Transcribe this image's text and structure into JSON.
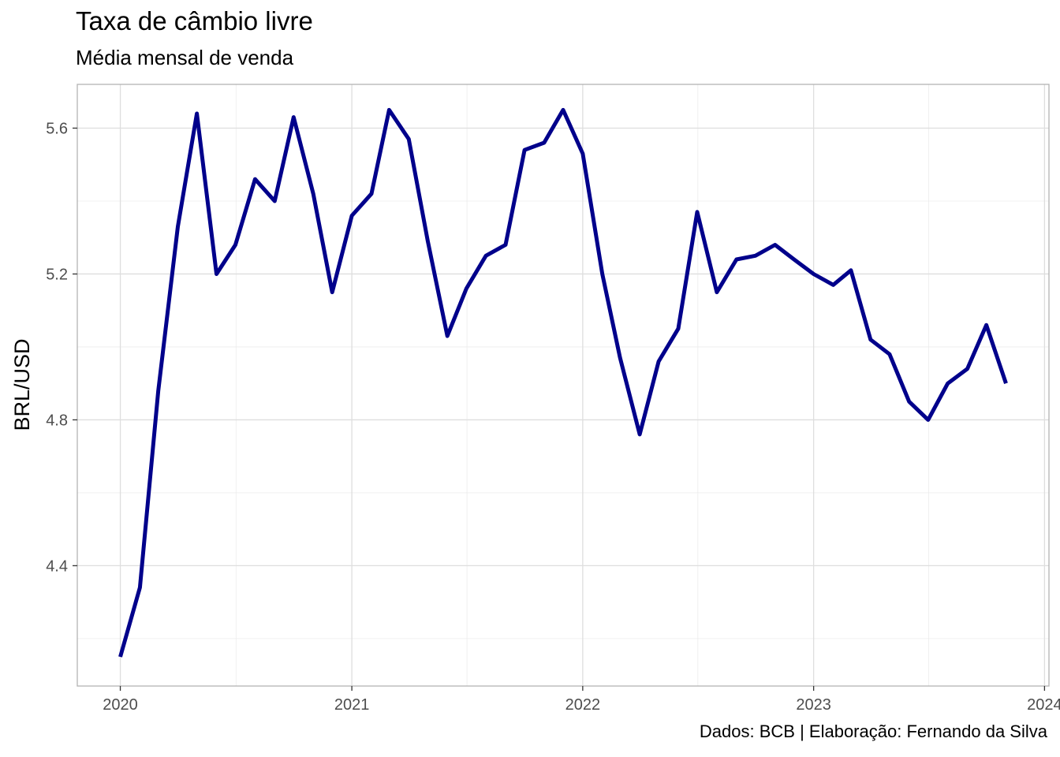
{
  "chart_data": {
    "type": "line",
    "title": "Taxa de câmbio livre",
    "subtitle": "Média mensal de venda",
    "caption": "Dados: BCB | Elaboração: Fernando da Silva",
    "xlabel": "",
    "ylabel": "BRL/USD",
    "grid": true,
    "xlim": [
      "2019-10-25",
      "2024-01-08"
    ],
    "ylim": [
      4.07,
      5.72
    ],
    "x_ticks": [
      "2020",
      "2021",
      "2022",
      "2023",
      "2024"
    ],
    "y_ticks": [
      "4.4",
      "4.8",
      "5.2",
      "5.6"
    ],
    "line_color": "#00008b",
    "series": [
      {
        "x": [
          "2020-01",
          "2020-02",
          "2020-03",
          "2020-04",
          "2020-05",
          "2020-06",
          "2020-07",
          "2020-08",
          "2020-09",
          "2020-10",
          "2020-11",
          "2020-12",
          "2021-01",
          "2021-02",
          "2021-03",
          "2021-04",
          "2021-05",
          "2021-06",
          "2021-07",
          "2021-08",
          "2021-09",
          "2021-10",
          "2021-11",
          "2021-12",
          "2022-01",
          "2022-02",
          "2022-03",
          "2022-04",
          "2022-05",
          "2022-06",
          "2022-07",
          "2022-08",
          "2022-09",
          "2022-10",
          "2022-11",
          "2022-12",
          "2023-01",
          "2023-02",
          "2023-03",
          "2023-04",
          "2023-05",
          "2023-06",
          "2023-07",
          "2023-08",
          "2023-09",
          "2023-10",
          "2023-11"
        ],
        "values": [
          4.15,
          4.34,
          4.88,
          5.33,
          5.64,
          5.2,
          5.28,
          5.46,
          5.4,
          5.63,
          5.42,
          5.15,
          5.36,
          5.42,
          5.65,
          5.57,
          5.29,
          5.03,
          5.16,
          5.25,
          5.28,
          5.54,
          5.56,
          5.65,
          5.53,
          5.2,
          4.97,
          4.76,
          4.96,
          5.05,
          5.37,
          5.15,
          5.24,
          5.25,
          5.28,
          5.24,
          5.2,
          5.17,
          5.21,
          5.02,
          4.98,
          4.85,
          4.8,
          4.9,
          4.94,
          5.06,
          4.9
        ]
      }
    ]
  }
}
